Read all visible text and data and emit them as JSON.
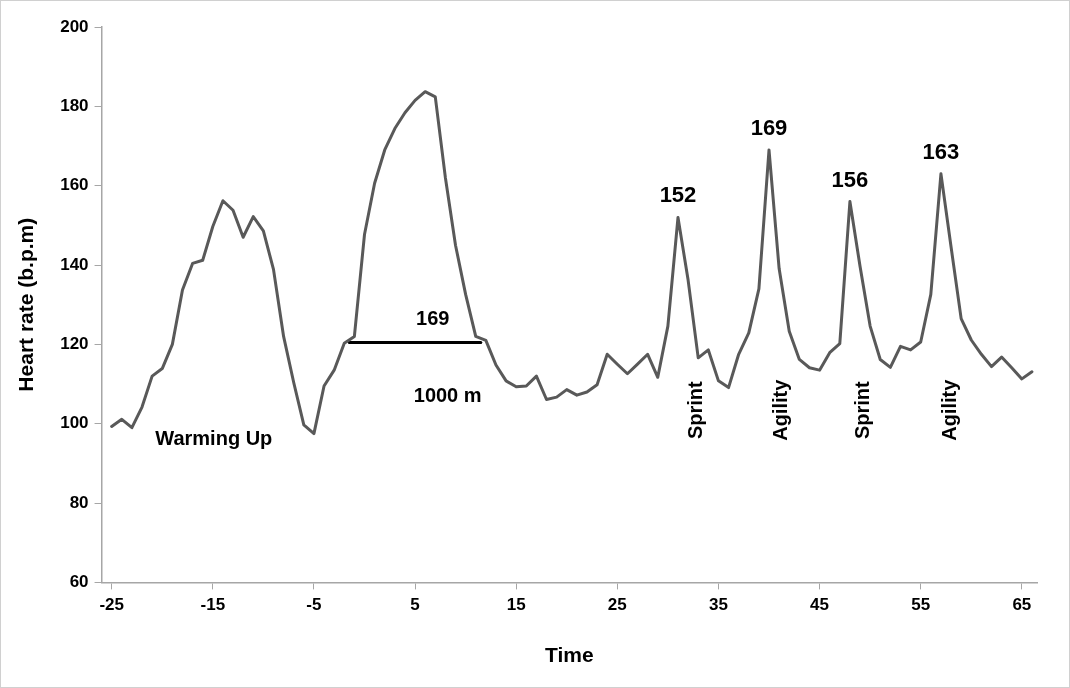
{
  "chart_data": {
    "type": "line",
    "xlabel": "Time",
    "ylabel": "Heart rate (b.p.m)",
    "xlim": [
      -26,
      66.5
    ],
    "xticks": [
      -25,
      -15,
      -5,
      5,
      15,
      25,
      35,
      45,
      55,
      65
    ],
    "ylim": [
      60,
      200
    ],
    "yticks": [
      60,
      80,
      100,
      120,
      140,
      160,
      180,
      200
    ],
    "grid": false,
    "legend": false,
    "marker": "none",
    "line_style": "solid",
    "series": [
      {
        "color": "#595959",
        "x": [
          -25,
          -24,
          -23,
          -22,
          -21,
          -20,
          -19,
          -18,
          -17,
          -16,
          -15,
          -14,
          -13,
          -12,
          -11,
          -10,
          -9,
          -8,
          -7,
          -6,
          -5,
          -4,
          -3,
          -2,
          -1,
          0,
          1,
          2,
          3,
          4,
          5,
          6,
          7,
          8,
          9,
          10,
          11,
          12,
          13,
          14,
          15,
          16,
          17,
          18,
          19,
          20,
          21,
          22,
          23,
          24,
          25,
          26,
          27,
          28,
          29,
          30,
          31,
          32,
          33,
          34,
          35,
          36,
          37,
          38,
          39,
          40,
          41,
          42,
          43,
          44,
          45,
          46,
          47,
          48,
          49,
          50,
          51,
          52,
          53,
          54,
          55,
          56,
          57,
          58,
          59,
          60,
          61,
          62,
          63,
          64,
          65,
          66
        ],
        "values": [
          99.3,
          101.1,
          99.0,
          104.2,
          112.0,
          113.9,
          120.0,
          133.7,
          140.4,
          141.2,
          149.7,
          156.2,
          153.8,
          147.0,
          152.2,
          148.6,
          138.9,
          122.0,
          110.4,
          99.7,
          97.5,
          109.5,
          113.5,
          120.3,
          122.0,
          147.7,
          160.6,
          169.0,
          174.4,
          178.4,
          181.5,
          183.7,
          182.4,
          162.0,
          145.0,
          132.6,
          122.0,
          121.0,
          114.8,
          110.8,
          109.3,
          109.5,
          112.0,
          106.1,
          106.7,
          108.6,
          107.2,
          108.0,
          109.8,
          117.5,
          115.0,
          112.6,
          115.0,
          117.5,
          111.7,
          124.6,
          152,
          136.2,
          116.6,
          118.6,
          110.8,
          109.1,
          117.5,
          122.9,
          134.0,
          169,
          139.1,
          123.3,
          116.2,
          114.1,
          113.5,
          117.9,
          120.2,
          156,
          139.7,
          124.6,
          116.2,
          114.2,
          119.5,
          118.6,
          120.6,
          132.6,
          163,
          144.6,
          126.5,
          121.1,
          117.5,
          114.4,
          116.8,
          114.1,
          111.3,
          113.1
        ],
        "value_labels": [
          null,
          null,
          null,
          null,
          null,
          null,
          null,
          null,
          null,
          null,
          null,
          null,
          null,
          null,
          null,
          null,
          null,
          null,
          null,
          null,
          null,
          null,
          null,
          null,
          null,
          null,
          null,
          null,
          null,
          null,
          null,
          null,
          null,
          null,
          null,
          null,
          null,
          null,
          null,
          null,
          null,
          null,
          null,
          null,
          null,
          null,
          null,
          null,
          null,
          null,
          null,
          null,
          null,
          null,
          null,
          null,
          "152",
          null,
          null,
          null,
          null,
          null,
          null,
          null,
          null,
          "169",
          null,
          null,
          null,
          null,
          null,
          null,
          null,
          "156",
          null,
          null,
          null,
          null,
          null,
          null,
          null,
          null,
          "163",
          null,
          null,
          null,
          null,
          null,
          null,
          null,
          null,
          null
        ]
      },
      {
        "type": "line",
        "color": "#000000",
        "x": [
          -1.5,
          11.5
        ],
        "values": [
          120.5,
          120.5
        ]
      }
    ],
    "annotations": [
      "Warming Up",
      "169",
      "1000 m",
      "Sprint",
      "Agility",
      "Sprint",
      "Agility"
    ]
  }
}
